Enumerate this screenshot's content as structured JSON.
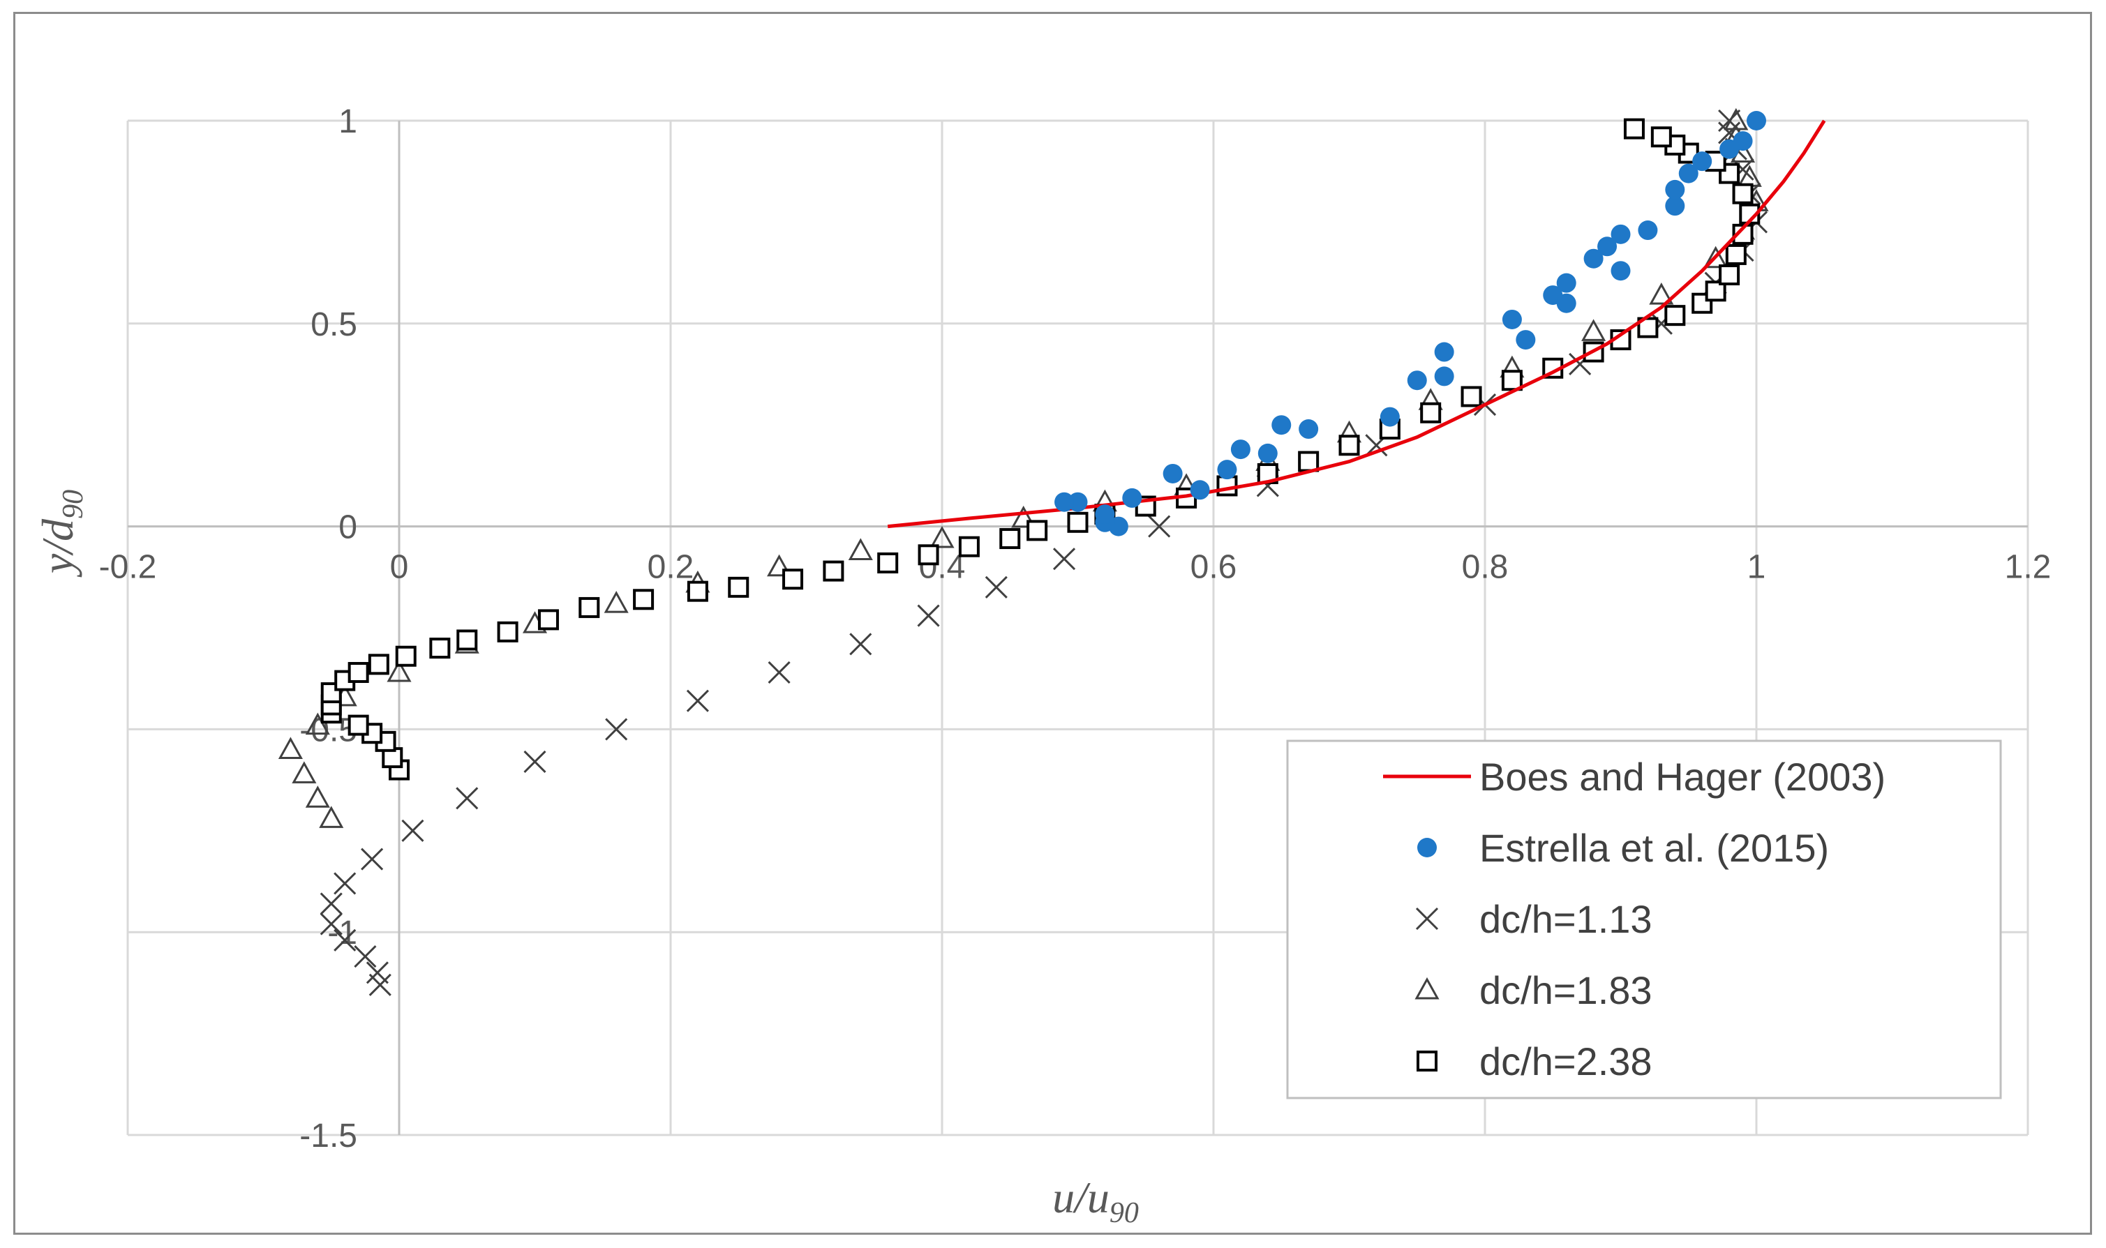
{
  "chart_data": {
    "type": "scatter",
    "title": "",
    "xlabel": {
      "main": "u/u",
      "sub": "90"
    },
    "ylabel": {
      "main": "y/d",
      "sub": "90"
    },
    "xlim": [
      -0.2,
      1.2
    ],
    "ylim": [
      -1.5,
      1
    ],
    "xticks": [
      -0.2,
      0,
      0.2,
      0.4,
      0.6,
      0.8,
      1,
      1.2
    ],
    "yticks": [
      -1.5,
      -1,
      -0.5,
      0,
      0.5,
      1
    ],
    "xtick_labels": [
      "-0.2",
      "0",
      "0.2",
      "0.4",
      "0.6",
      "0.8",
      "1",
      "1.2"
    ],
    "ytick_labels": [
      "-1.5",
      "-1",
      "-0.5",
      "0",
      "0.5",
      "1"
    ],
    "grid": true,
    "legend_position": "bottom-right",
    "series": [
      {
        "name": "Boes and Hager (2003)",
        "marker": "line",
        "color": "#e8000b",
        "points": [
          [
            0.36,
            0.0
          ],
          [
            0.42,
            0.02
          ],
          [
            0.5,
            0.045
          ],
          [
            0.58,
            0.075
          ],
          [
            0.64,
            0.11
          ],
          [
            0.7,
            0.16
          ],
          [
            0.75,
            0.22
          ],
          [
            0.8,
            0.3
          ],
          [
            0.85,
            0.38
          ],
          [
            0.89,
            0.45
          ],
          [
            0.93,
            0.54
          ],
          [
            0.96,
            0.63
          ],
          [
            0.98,
            0.7
          ],
          [
            1.0,
            0.77
          ],
          [
            1.02,
            0.85
          ],
          [
            1.035,
            0.92
          ],
          [
            1.05,
            1.0
          ]
        ]
      },
      {
        "name": "Estrella et al. (2015)",
        "marker": "dot",
        "color": "#1f78c8",
        "points": [
          [
            0.53,
            0.0
          ],
          [
            0.52,
            0.01
          ],
          [
            0.52,
            0.03
          ],
          [
            0.5,
            0.06
          ],
          [
            0.49,
            0.06
          ],
          [
            0.54,
            0.07
          ],
          [
            0.57,
            0.13
          ],
          [
            0.59,
            0.09
          ],
          [
            0.61,
            0.14
          ],
          [
            0.62,
            0.19
          ],
          [
            0.64,
            0.18
          ],
          [
            0.65,
            0.25
          ],
          [
            0.67,
            0.24
          ],
          [
            0.73,
            0.27
          ],
          [
            0.75,
            0.36
          ],
          [
            0.77,
            0.37
          ],
          [
            0.77,
            0.43
          ],
          [
            0.82,
            0.51
          ],
          [
            0.83,
            0.46
          ],
          [
            0.85,
            0.57
          ],
          [
            0.86,
            0.55
          ],
          [
            0.86,
            0.6
          ],
          [
            0.88,
            0.66
          ],
          [
            0.89,
            0.69
          ],
          [
            0.9,
            0.63
          ],
          [
            0.9,
            0.72
          ],
          [
            0.92,
            0.73
          ],
          [
            0.94,
            0.79
          ],
          [
            0.94,
            0.83
          ],
          [
            0.95,
            0.87
          ],
          [
            0.96,
            0.9
          ],
          [
            0.98,
            0.93
          ],
          [
            0.99,
            0.95
          ],
          [
            1.0,
            1.0
          ]
        ]
      },
      {
        "name": "dc/h=1.13",
        "marker": "x",
        "color": "#404040",
        "points": [
          [
            -0.014,
            -1.13
          ],
          [
            -0.016,
            -1.1
          ],
          [
            -0.025,
            -1.06
          ],
          [
            -0.04,
            -1.02
          ],
          [
            -0.05,
            -0.98
          ],
          [
            -0.05,
            -0.93
          ],
          [
            -0.04,
            -0.88
          ],
          [
            -0.02,
            -0.82
          ],
          [
            0.01,
            -0.75
          ],
          [
            0.05,
            -0.67
          ],
          [
            0.1,
            -0.58
          ],
          [
            0.16,
            -0.5
          ],
          [
            0.22,
            -0.43
          ],
          [
            0.28,
            -0.36
          ],
          [
            0.34,
            -0.29
          ],
          [
            0.39,
            -0.22
          ],
          [
            0.44,
            -0.15
          ],
          [
            0.49,
            -0.08
          ],
          [
            0.56,
            0.0
          ],
          [
            0.64,
            0.1
          ],
          [
            0.72,
            0.2
          ],
          [
            0.8,
            0.3
          ],
          [
            0.87,
            0.4
          ],
          [
            0.93,
            0.5
          ],
          [
            0.97,
            0.6
          ],
          [
            0.99,
            0.68
          ],
          [
            1.0,
            0.75
          ],
          [
            0.995,
            0.82
          ],
          [
            0.99,
            0.88
          ],
          [
            0.985,
            0.93
          ],
          [
            0.98,
            0.97
          ],
          [
            0.98,
            1.0
          ]
        ]
      },
      {
        "name": "dc/h=1.83",
        "marker": "triangle",
        "color": "#404040",
        "points": [
          [
            -0.05,
            -0.72
          ],
          [
            -0.06,
            -0.67
          ],
          [
            -0.07,
            -0.61
          ],
          [
            -0.08,
            -0.55
          ],
          [
            -0.06,
            -0.49
          ],
          [
            -0.04,
            -0.42
          ],
          [
            0.0,
            -0.36
          ],
          [
            0.05,
            -0.29
          ],
          [
            0.1,
            -0.24
          ],
          [
            0.16,
            -0.19
          ],
          [
            0.22,
            -0.14
          ],
          [
            0.28,
            -0.1
          ],
          [
            0.34,
            -0.06
          ],
          [
            0.4,
            -0.03
          ],
          [
            0.46,
            0.02
          ],
          [
            0.52,
            0.06
          ],
          [
            0.58,
            0.1
          ],
          [
            0.64,
            0.16
          ],
          [
            0.7,
            0.23
          ],
          [
            0.76,
            0.31
          ],
          [
            0.82,
            0.39
          ],
          [
            0.88,
            0.48
          ],
          [
            0.93,
            0.57
          ],
          [
            0.97,
            0.66
          ],
          [
            0.99,
            0.73
          ],
          [
            1.0,
            0.8
          ],
          [
            0.995,
            0.86
          ],
          [
            0.99,
            0.92
          ],
          [
            0.985,
            0.96
          ],
          [
            0.985,
            1.0
          ]
        ]
      },
      {
        "name": "dc/h=2.38",
        "marker": "square",
        "color": "#000000",
        "points": [
          [
            0.0,
            -0.6
          ],
          [
            -0.005,
            -0.57
          ],
          [
            -0.01,
            -0.53
          ],
          [
            -0.02,
            -0.51
          ],
          [
            -0.03,
            -0.49
          ],
          [
            -0.05,
            -0.46
          ],
          [
            -0.05,
            -0.44
          ],
          [
            -0.05,
            -0.41
          ],
          [
            -0.04,
            -0.38
          ],
          [
            -0.03,
            -0.36
          ],
          [
            -0.015,
            -0.34
          ],
          [
            0.005,
            -0.32
          ],
          [
            0.03,
            -0.3
          ],
          [
            0.05,
            -0.28
          ],
          [
            0.08,
            -0.26
          ],
          [
            0.11,
            -0.23
          ],
          [
            0.14,
            -0.2
          ],
          [
            0.18,
            -0.18
          ],
          [
            0.22,
            -0.16
          ],
          [
            0.25,
            -0.15
          ],
          [
            0.29,
            -0.13
          ],
          [
            0.32,
            -0.11
          ],
          [
            0.36,
            -0.09
          ],
          [
            0.39,
            -0.07
          ],
          [
            0.42,
            -0.05
          ],
          [
            0.45,
            -0.03
          ],
          [
            0.47,
            -0.01
          ],
          [
            0.5,
            0.01
          ],
          [
            0.52,
            0.03
          ],
          [
            0.55,
            0.05
          ],
          [
            0.58,
            0.07
          ],
          [
            0.61,
            0.1
          ],
          [
            0.64,
            0.13
          ],
          [
            0.67,
            0.16
          ],
          [
            0.7,
            0.2
          ],
          [
            0.73,
            0.24
          ],
          [
            0.76,
            0.28
          ],
          [
            0.79,
            0.32
          ],
          [
            0.82,
            0.36
          ],
          [
            0.85,
            0.39
          ],
          [
            0.88,
            0.43
          ],
          [
            0.9,
            0.46
          ],
          [
            0.92,
            0.49
          ],
          [
            0.94,
            0.52
          ],
          [
            0.96,
            0.55
          ],
          [
            0.97,
            0.58
          ],
          [
            0.98,
            0.62
          ],
          [
            0.985,
            0.67
          ],
          [
            0.99,
            0.72
          ],
          [
            0.995,
            0.77
          ],
          [
            0.99,
            0.82
          ],
          [
            0.98,
            0.87
          ],
          [
            0.97,
            0.9
          ],
          [
            0.95,
            0.92
          ],
          [
            0.94,
            0.94
          ],
          [
            0.93,
            0.96
          ],
          [
            0.91,
            0.98
          ]
        ]
      }
    ]
  }
}
